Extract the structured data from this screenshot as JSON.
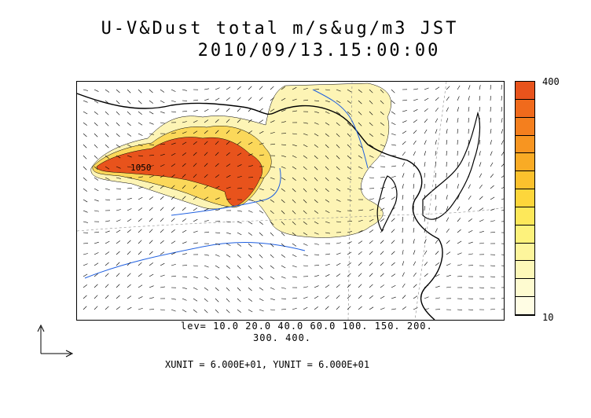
{
  "title_line1": "U-V&Dust total m/s&ug/m3 JST",
  "title_line2": "2010/09/13.15:00:00",
  "colorbar": {
    "max_label": "400",
    "min_label": "10",
    "colors": [
      "#e8531c",
      "#f06a1c",
      "#f47f1e",
      "#f79521",
      "#f9ab25",
      "#fbc12d",
      "#fdd63b",
      "#fde85a",
      "#fdf27c",
      "#fdf59c",
      "#fdf8b8",
      "#fefbd0",
      "#fffde4"
    ]
  },
  "levels_line1": "lev= 10.0 20.0 40.0 60.0 100. 150. 200.",
  "levels_line2": "300. 400.",
  "units_text": "XUNIT = 6.000E+01, YUNIT = 6.000E+01",
  "annotation": "1050",
  "colors": {
    "coast": "#000000",
    "rivers": "#1e5fe0",
    "dust_light": "#fdf4b5",
    "dust_mid": "#fbd85a",
    "dust_high": "#f0781c",
    "dust_core": "#e8531c"
  }
}
